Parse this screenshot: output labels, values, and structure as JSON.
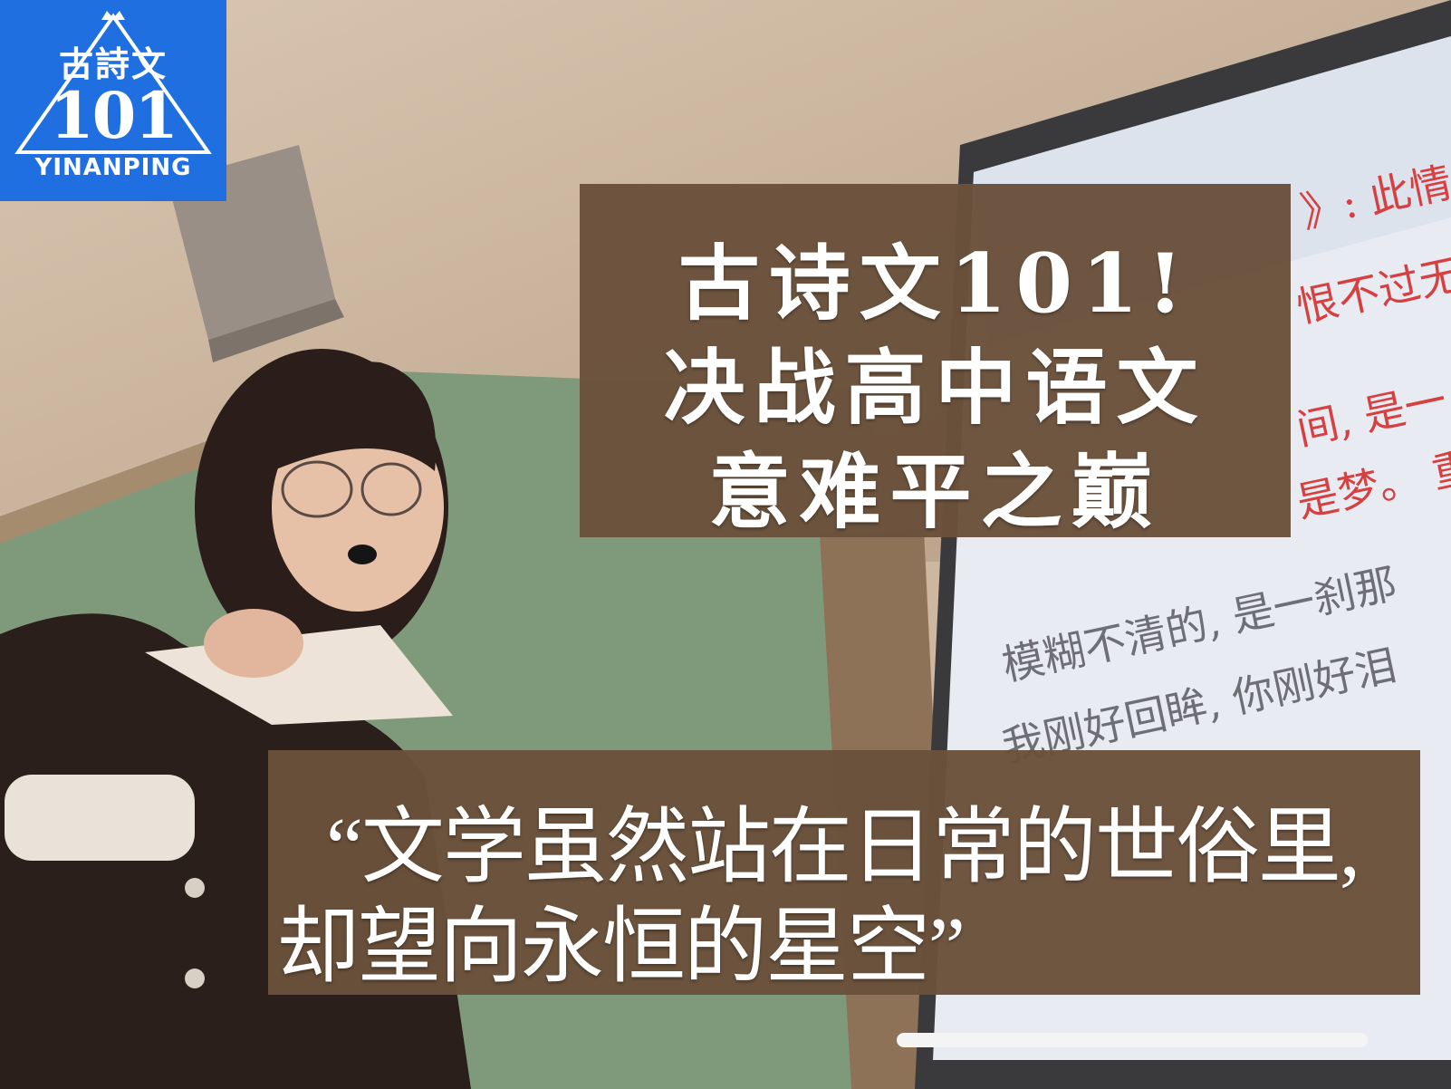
{
  "logo": {
    "top_text": "古詩文",
    "number": "101",
    "bottom_text": "YINANPING",
    "background_color": "#1f6fe0"
  },
  "title": {
    "line1": "古诗文101!",
    "line2": "决战高中语文",
    "line3": "意难平之巅",
    "box_color": "#6a513b"
  },
  "quote": {
    "line1": "“文学虽然站在日常的世俗里,",
    "line2": "却望向永恒的星空”"
  },
  "board": {
    "red_lines": [
      "》: 此情",
      "恨不过无",
      "间, 是一",
      "是梦。 重"
    ],
    "gray_lines": [
      "模糊不清的, 是一刹那",
      "我刚好回眸, 你刚好泪"
    ]
  }
}
